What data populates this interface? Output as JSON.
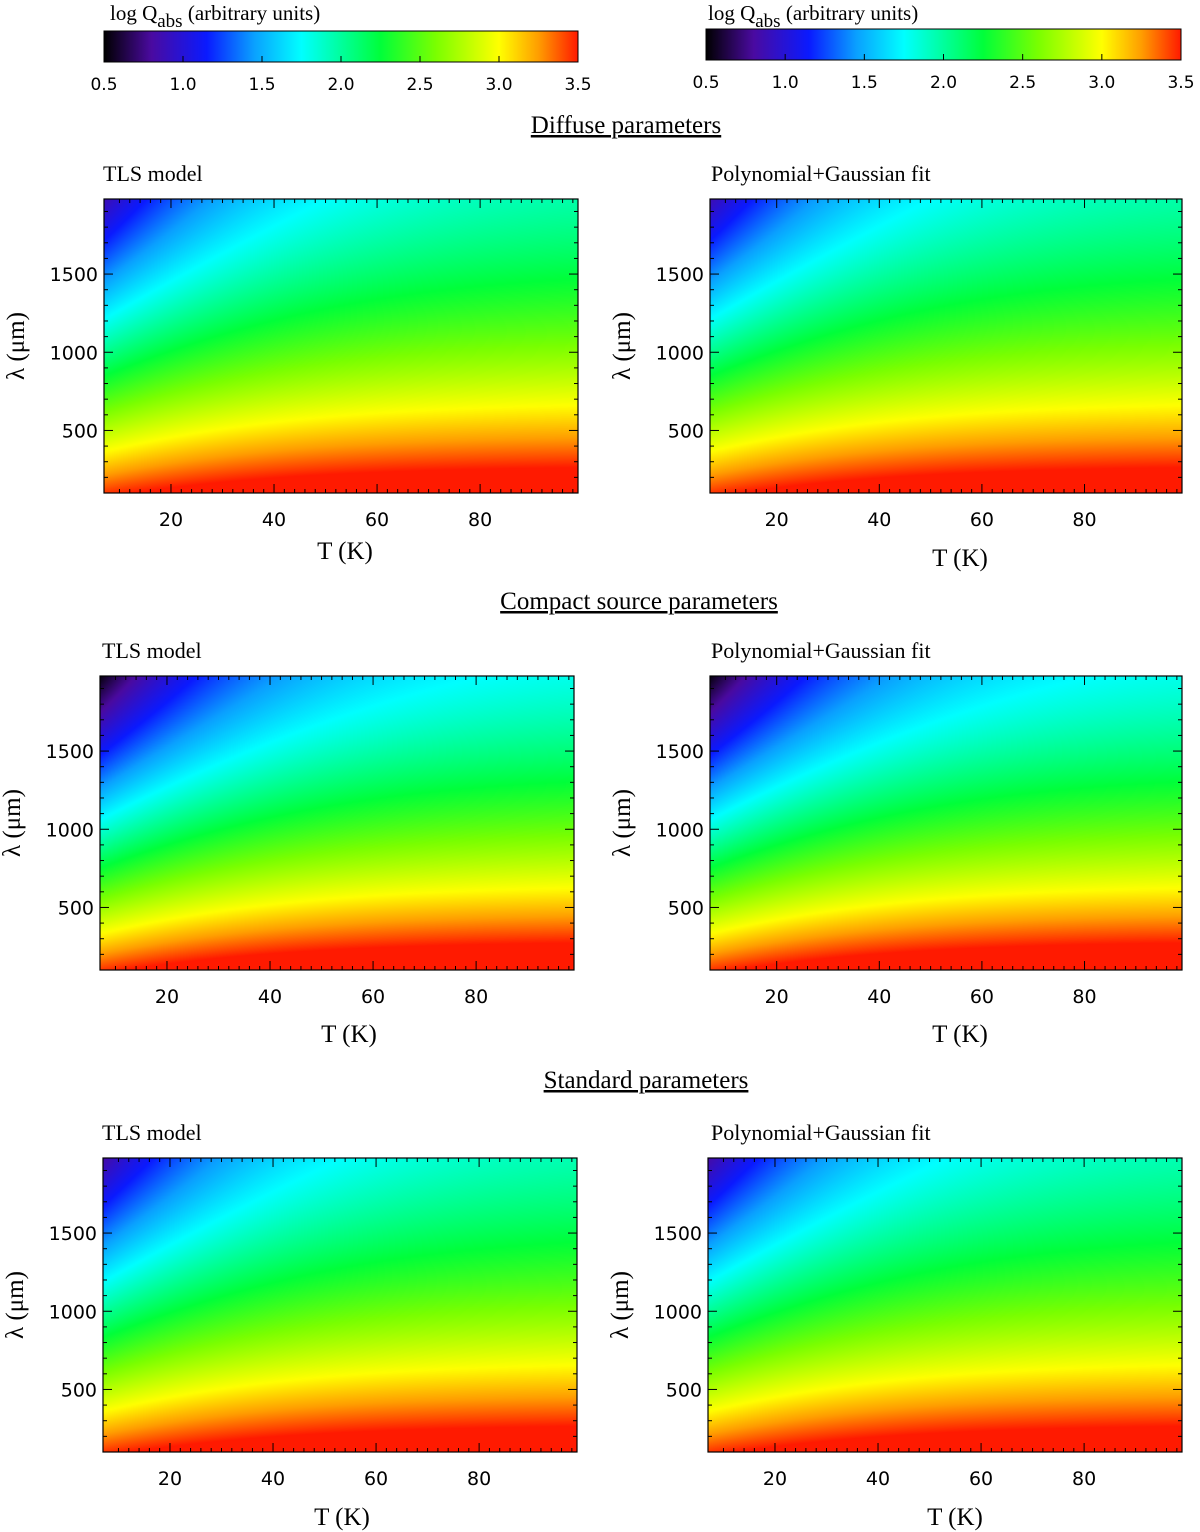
{
  "colorbar": {
    "label_main": "log Q",
    "label_sub": "abs",
    "label_rest": " (arbitrary units)",
    "ticks": [
      "0.5",
      "1.0",
      "1.5",
      "2.0",
      "2.5",
      "3.0",
      "3.5"
    ],
    "range": [
      0.5,
      3.5
    ],
    "colormap": [
      {
        "v": 0.5,
        "color": "#000000"
      },
      {
        "v": 0.8,
        "color": "#4a0aa0"
      },
      {
        "v": 1.15,
        "color": "#0a1aff"
      },
      {
        "v": 1.45,
        "color": "#0aa0ff"
      },
      {
        "v": 1.75,
        "color": "#00ffff"
      },
      {
        "v": 2.25,
        "color": "#00ff3a"
      },
      {
        "v": 2.6,
        "color": "#7aff00"
      },
      {
        "v": 3.0,
        "color": "#ffff00"
      },
      {
        "v": 3.25,
        "color": "#ff9d00"
      },
      {
        "v": 3.5,
        "color": "#ff1a00"
      }
    ]
  },
  "sections": [
    {
      "title": "Diffuse parameters"
    },
    {
      "title": "Compact source parameters"
    },
    {
      "title": "Standard parameters"
    }
  ],
  "column_titles": [
    "TLS model",
    "Polynomial+Gaussian fit"
  ],
  "chart_data": [
    {
      "type": "heatmap",
      "section": "Diffuse parameters",
      "title": "TLS model",
      "xlabel": "T (K)",
      "ylabel": "λ (μm)",
      "xlim": [
        7,
        99
      ],
      "ylim": [
        100,
        1980
      ],
      "xticks": [
        20,
        40,
        60,
        80
      ],
      "yticks": [
        500,
        1000,
        1500
      ],
      "z_label": "log Q abs (arbitrary units)",
      "z_range": [
        0.5,
        3.5
      ],
      "z_min_corner": 0.85
    },
    {
      "type": "heatmap",
      "section": "Diffuse parameters",
      "title": "Polynomial+Gaussian fit",
      "xlabel": "T (K)",
      "ylabel": "λ (μm)",
      "xlim": [
        7,
        99
      ],
      "ylim": [
        100,
        1980
      ],
      "xticks": [
        20,
        40,
        60,
        80
      ],
      "yticks": [
        500,
        1000,
        1500
      ],
      "z_label": "log Q abs (arbitrary units)",
      "z_range": [
        0.5,
        3.5
      ],
      "z_min_corner": 0.85
    },
    {
      "type": "heatmap",
      "section": "Compact source parameters",
      "title": "TLS model",
      "xlabel": "T (K)",
      "ylabel": "λ (μm)",
      "xlim": [
        7,
        99
      ],
      "ylim": [
        100,
        1980
      ],
      "xticks": [
        20,
        40,
        60,
        80
      ],
      "yticks": [
        500,
        1000,
        1500
      ],
      "z_label": "log Q abs (arbitrary units)",
      "z_range": [
        0.5,
        3.5
      ],
      "z_min_corner": 0.5
    },
    {
      "type": "heatmap",
      "section": "Compact source parameters",
      "title": "Polynomial+Gaussian fit",
      "xlabel": "T (K)",
      "ylabel": "λ (μm)",
      "xlim": [
        7,
        99
      ],
      "ylim": [
        100,
        1980
      ],
      "xticks": [
        20,
        40,
        60,
        80
      ],
      "yticks": [
        500,
        1000,
        1500
      ],
      "z_label": "log Q abs (arbitrary units)",
      "z_range": [
        0.5,
        3.5
      ],
      "z_min_corner": 0.5
    },
    {
      "type": "heatmap",
      "section": "Standard parameters",
      "title": "TLS model",
      "xlabel": "T (K)",
      "ylabel": "λ (μm)",
      "xlim": [
        7,
        99
      ],
      "ylim": [
        100,
        1980
      ],
      "xticks": [
        20,
        40,
        60,
        80
      ],
      "yticks": [
        500,
        1000,
        1500
      ],
      "z_label": "log Q abs (arbitrary units)",
      "z_range": [
        0.5,
        3.5
      ],
      "z_min_corner": 0.8
    },
    {
      "type": "heatmap",
      "section": "Standard parameters",
      "title": "Polynomial+Gaussian fit",
      "xlabel": "T (K)",
      "ylabel": "λ (μm)",
      "xlim": [
        7,
        99
      ],
      "ylim": [
        100,
        1980
      ],
      "xticks": [
        20,
        40,
        60,
        80
      ],
      "yticks": [
        500,
        1000,
        1500
      ],
      "z_label": "log Q abs (arbitrary units)",
      "z_range": [
        0.5,
        3.5
      ],
      "z_min_corner": 0.8
    }
  ]
}
